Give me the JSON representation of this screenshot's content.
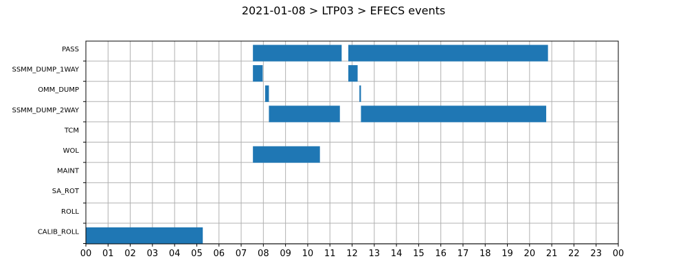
{
  "chart_data": {
    "type": "bar",
    "orientation": "horizontal",
    "title": "2021-01-08 > LTP03 > EFECS events",
    "xlabel": "",
    "ylabel": "",
    "xlim": [
      0,
      24
    ],
    "x_tick_labels": [
      "00",
      "01",
      "02",
      "03",
      "04",
      "05",
      "06",
      "07",
      "08",
      "09",
      "10",
      "11",
      "12",
      "13",
      "14",
      "15",
      "16",
      "17",
      "18",
      "19",
      "20",
      "21",
      "22",
      "23",
      "00"
    ],
    "grid": true,
    "bar_color": "#1f77b4",
    "categories": [
      "PASS",
      "SSMM_DUMP_1WAY",
      "OMM_DUMP",
      "SSMM_DUMP_2WAY",
      "TCM",
      "WOL",
      "MAINT",
      "SA_ROT",
      "ROLL",
      "CALIB_ROLL"
    ],
    "events": [
      {
        "category": "PASS",
        "start": 7.53,
        "end": 11.53
      },
      {
        "category": "PASS",
        "start": 11.83,
        "end": 20.83
      },
      {
        "category": "SSMM_DUMP_1WAY",
        "start": 7.53,
        "end": 7.97
      },
      {
        "category": "SSMM_DUMP_1WAY",
        "start": 11.83,
        "end": 12.25
      },
      {
        "category": "OMM_DUMP",
        "start": 8.08,
        "end": 8.25
      },
      {
        "category": "OMM_DUMP",
        "start": 12.33,
        "end": 12.4
      },
      {
        "category": "SSMM_DUMP_2WAY",
        "start": 8.25,
        "end": 11.45
      },
      {
        "category": "SSMM_DUMP_2WAY",
        "start": 12.4,
        "end": 20.75
      },
      {
        "category": "WOL",
        "start": 7.53,
        "end": 10.55
      },
      {
        "category": "CALIB_ROLL",
        "start": 0.0,
        "end": 5.27
      }
    ]
  }
}
